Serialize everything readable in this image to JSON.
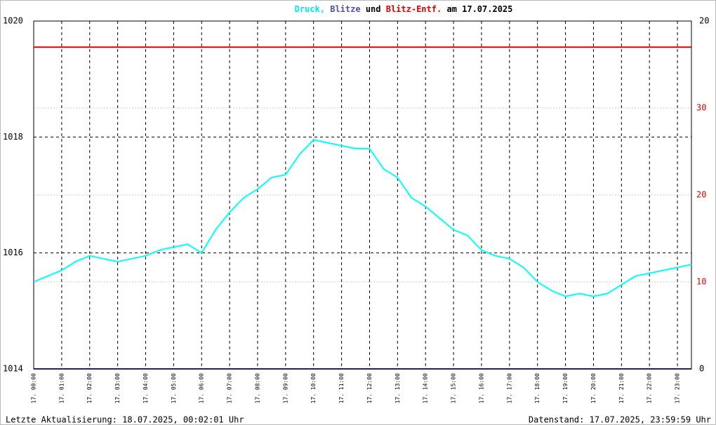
{
  "chart_data": {
    "type": "line",
    "title_parts": [
      {
        "text": "Druck,",
        "color": "#00e5e5"
      },
      {
        "text": "Blitze",
        "color": "#5050b0"
      },
      {
        "text": "und",
        "color": "#000000"
      },
      {
        "text": "Blitz-Entf.",
        "color": "#dd0000"
      },
      {
        "text": "am 17.07.2025",
        "color": "#000000"
      }
    ],
    "footer_left": "Letzte Aktualisierung: 18.07.2025, 00:02:01 Uhr",
    "footer_right": "Datenstand: 17.07.2025, 23:59:59 Uhr",
    "x": [
      0,
      0.5,
      1,
      1.5,
      2,
      2.5,
      3,
      3.5,
      4,
      4.5,
      5,
      5.5,
      6,
      6.5,
      7,
      7.5,
      8,
      8.5,
      9,
      9.5,
      10,
      10.5,
      11,
      11.5,
      12,
      12.5,
      13,
      13.5,
      14,
      14.5,
      15,
      15.5,
      16,
      16.5,
      17,
      17.5,
      18,
      18.5,
      19,
      19.5,
      20,
      20.5,
      21,
      21.5,
      22,
      22.5,
      23,
      23.5
    ],
    "xlim": [
      0,
      23.5
    ],
    "xticks": [
      {
        "value": 0,
        "label": "17. 00:00"
      },
      {
        "value": 1,
        "label": "17. 01:00"
      },
      {
        "value": 2,
        "label": "17. 02:00"
      },
      {
        "value": 3,
        "label": "17. 03:00"
      },
      {
        "value": 4,
        "label": "17. 04:00"
      },
      {
        "value": 5,
        "label": "17. 05:00"
      },
      {
        "value": 6,
        "label": "17. 06:00"
      },
      {
        "value": 7,
        "label": "17. 07:00"
      },
      {
        "value": 8,
        "label": "17. 08:00"
      },
      {
        "value": 9,
        "label": "17. 09:00"
      },
      {
        "value": 10,
        "label": "17. 10:00"
      },
      {
        "value": 11,
        "label": "17. 11:00"
      },
      {
        "value": 12,
        "label": "17. 12:00"
      },
      {
        "value": 13,
        "label": "17. 13:00"
      },
      {
        "value": 14,
        "label": "17. 14:00"
      },
      {
        "value": 15,
        "label": "17. 15:00"
      },
      {
        "value": 16,
        "label": "17. 16:00"
      },
      {
        "value": 17,
        "label": "17. 17:00"
      },
      {
        "value": 18,
        "label": "17. 18:00"
      },
      {
        "value": 19,
        "label": "17. 19:00"
      },
      {
        "value": 20,
        "label": "17. 20:00"
      },
      {
        "value": 21,
        "label": "17. 21:00"
      },
      {
        "value": 22,
        "label": "17. 22:00"
      },
      {
        "value": 23,
        "label": "17. 23:00"
      }
    ],
    "ylim": [
      1014,
      1020
    ],
    "yticks": [
      1014,
      1016,
      1018,
      1020
    ],
    "y2lim": [
      0,
      20
    ],
    "y2ticks": [
      0,
      20
    ],
    "y3lim": [
      0,
      40
    ],
    "y3ticks": [
      10,
      20,
      30
    ],
    "y3color": "#dd0000",
    "series": [
      {
        "name": "Druck",
        "color": "#00ffff",
        "axis": "y",
        "values": [
          1015.5,
          1015.6,
          1015.7,
          1015.85,
          1015.95,
          1015.9,
          1015.85,
          1015.9,
          1015.95,
          1016.05,
          1016.1,
          1016.15,
          1016.0,
          1016.4,
          1016.7,
          1016.95,
          1017.1,
          1017.3,
          1017.35,
          1017.7,
          1017.95,
          1017.9,
          1017.85,
          1017.8,
          1017.8,
          1017.45,
          1017.3,
          1016.95,
          1016.8,
          1016.6,
          1016.4,
          1016.3,
          1016.05,
          1015.95,
          1015.9,
          1015.75,
          1015.5,
          1015.35,
          1015.25,
          1015.3,
          1015.25,
          1015.3,
          1015.45,
          1015.6,
          1015.65,
          1015.7,
          1015.75,
          1015.8
        ]
      },
      {
        "name": "Blitz-Entf.",
        "color": "#dd0000",
        "axis": "y3",
        "values": [
          37,
          37,
          37,
          37,
          37,
          37,
          37,
          37,
          37,
          37,
          37,
          37,
          37,
          37,
          37,
          37,
          37,
          37,
          37,
          37,
          37,
          37,
          37,
          37,
          37,
          37,
          37,
          37,
          37,
          37,
          37,
          37,
          37,
          37,
          37,
          37,
          37,
          37,
          37,
          37,
          37,
          37,
          37,
          37,
          37,
          37,
          37,
          37
        ]
      },
      {
        "name": "Blitze",
        "color": "#202070",
        "axis": "y2",
        "values": [
          0,
          0,
          0,
          0,
          0,
          0,
          0,
          0,
          0,
          0,
          0,
          0,
          0,
          0,
          0,
          0,
          0,
          0,
          0,
          0,
          0,
          0,
          0,
          0,
          0,
          0,
          0,
          0,
          0,
          0,
          0,
          0,
          0,
          0,
          0,
          0,
          0,
          0,
          0,
          0,
          0,
          0,
          0,
          0,
          0,
          0,
          0,
          0
        ]
      }
    ]
  }
}
